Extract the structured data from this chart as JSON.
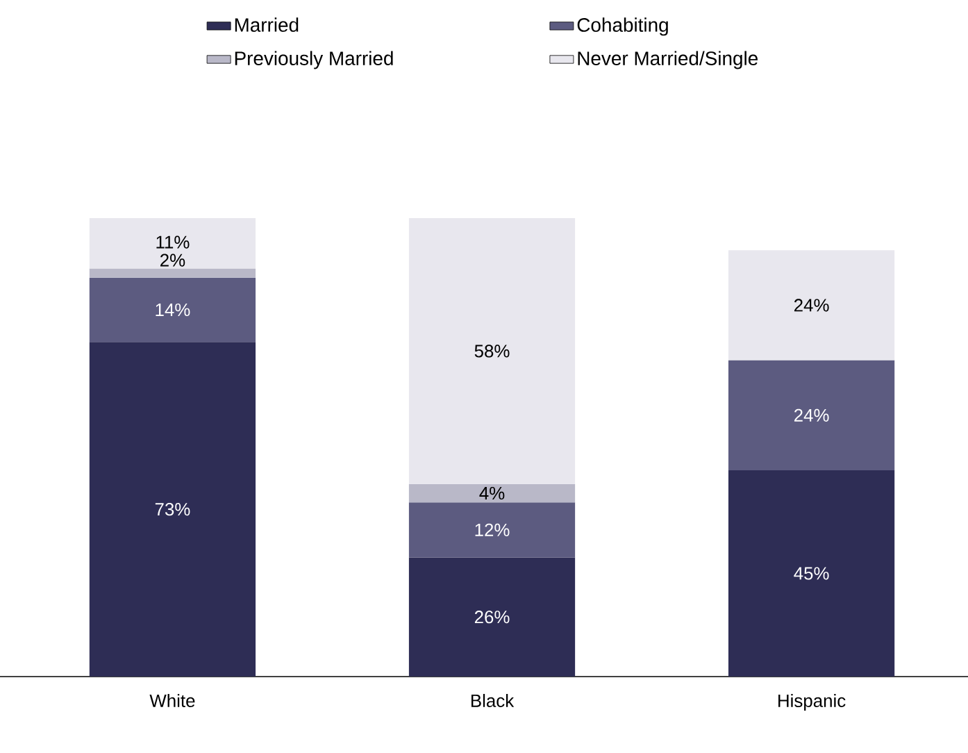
{
  "chart_data": {
    "type": "bar",
    "stacked": true,
    "legend": "top",
    "categories": [
      "White",
      "Black",
      "Hispanic"
    ],
    "series": [
      {
        "name": "Married",
        "color": "#2e2d55",
        "values": [
          73,
          26,
          45
        ],
        "value_labels": [
          "73%",
          "26%",
          "45%"
        ]
      },
      {
        "name": "Cohabiting",
        "color": "#5c5b80",
        "values": [
          14,
          12,
          24
        ],
        "value_labels": [
          "14%",
          "12%",
          "24%"
        ]
      },
      {
        "name": "Previously Married",
        "color": "#b9b8c8",
        "values": [
          2,
          4,
          null
        ],
        "value_labels": [
          "2%",
          "4%",
          null
        ]
      },
      {
        "name": "Never Married/Single",
        "color": "#e8e7ee",
        "values": [
          11,
          58,
          24
        ],
        "value_labels": [
          "11%",
          "58%",
          "24%"
        ]
      }
    ]
  }
}
